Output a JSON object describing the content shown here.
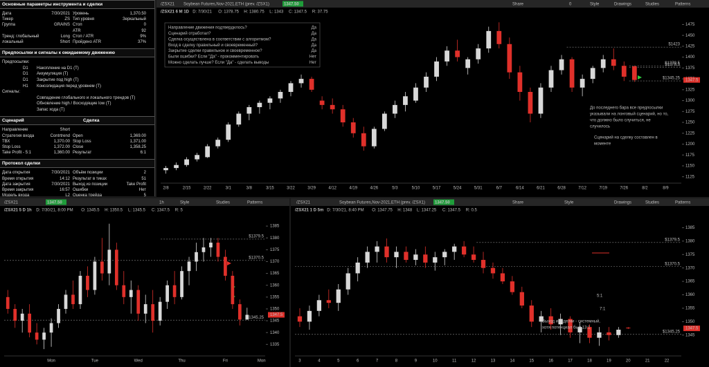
{
  "left_panel": {
    "sections": [
      {
        "titles": [
          "Основные параметры инструмента и сделки"
        ],
        "rows": [
          [
            "Дата",
            "7/30/2021",
            "Уровень",
            "1,370.50"
          ],
          [
            "Тикер",
            "ZS",
            "Тип уровня",
            "Зеркальный"
          ],
          [
            "Группа",
            "GRAINS",
            "Стоп",
            "0"
          ],
          [
            null,
            null,
            "ATR",
            "92"
          ],
          [
            "Тренд: глобальный",
            "Long",
            "Стоп / ATR",
            "9%"
          ],
          [
            "локальный",
            "Short",
            "Пройдено ATR",
            "37%"
          ]
        ]
      },
      {
        "titles": [
          "Предпосылки и сигналы к ожидаемому движению"
        ],
        "groups": [
          {
            "label": "Предпосылки:",
            "items": [
              [
                "D1",
                "Накопление на D1 (Т)"
              ],
              [
                "D1",
                "Аккумуляция (Т)"
              ],
              [
                "D1",
                "Закрытие под high (Т)"
              ],
              [
                "H1",
                "Консолидация перед уровнем (Т)"
              ]
            ]
          },
          {
            "label": "Сигналы:",
            "items": [
              [
                null,
                "Совпадение глобального и локального трендов (Т)"
              ],
              [
                null,
                "Обновление high / Восходящие low (Т)"
              ],
              [
                null,
                "Запас хода (Т)"
              ]
            ]
          }
        ]
      },
      {
        "titles": [
          "Сценарий",
          "Сделка"
        ],
        "rows": [
          [
            "Направление",
            "Short",
            null,
            null
          ],
          [
            "Стратегия входа",
            "Contrtrend",
            "Open",
            "1,369.00"
          ],
          [
            "ТВХ",
            "1,370.00",
            "Stop Loss",
            "1,371.00"
          ],
          [
            "Stop Loss",
            "1,372.00",
            "Close",
            "1,358.25"
          ],
          [
            "Take Profit - 5:1",
            "1,360.00",
            "Результат",
            "6:1"
          ]
        ]
      },
      {
        "titles": [
          "Протокол сделки"
        ],
        "rows": [
          [
            "Дата открытия",
            "7/30/2021",
            "Объём позиции",
            "2"
          ],
          [
            "Время открытия",
            "14:12",
            "Результат в тиках",
            "51"
          ],
          [
            "Дата закрытия",
            "7/30/2021",
            "Выход из позиции",
            "Take Profit"
          ],
          [
            "Время закрытия",
            "16:57",
            "Ошибки",
            "Нет"
          ],
          [
            "Модель входа",
            "L2",
            "Оценка трейда",
            "5"
          ]
        ]
      }
    ]
  },
  "chart_data": [
    {
      "type": "candlestick",
      "toolbar": [
        "/ZSX21",
        "Soybean Futures,Nov-2021,ETH (prev. /ZSX1)",
        "1347.50",
        "Share",
        "0",
        "Style",
        "Drawings",
        "Studies",
        "Patterns"
      ],
      "header": [
        "/ZSX21 6 M 1D",
        "D: 7/30/21",
        "O: 1378.75",
        "H: 1380.75",
        "L: 1343",
        "C: 1347.5",
        "R: 37.75"
      ],
      "up_color": "#d8d8d8",
      "down_color": "#e0302a",
      "ylim": [
        1115,
        1490
      ],
      "yticks": [
        1125,
        1150,
        1175,
        1200,
        1225,
        1250,
        1275,
        1300,
        1325,
        1350,
        1375,
        1400,
        1425,
        1450,
        1475
      ],
      "categories": [
        "2/8",
        null,
        "2/15",
        null,
        "2/22",
        null,
        "3/1",
        null,
        "3/8",
        null,
        "3/15",
        null,
        "3/22",
        null,
        "3/29",
        null,
        "4/12",
        null,
        "4/19",
        null,
        "4/26",
        null,
        "5/3",
        null,
        "5/10",
        null,
        "5/17",
        null,
        "5/24",
        null,
        "5/31",
        null,
        "6/7",
        null,
        "6/14",
        null,
        "6/21",
        null,
        "6/28",
        null,
        "7/12",
        null,
        "7/19",
        null,
        "7/26",
        null,
        "8/2",
        null,
        "8/9",
        null
      ],
      "candles": [
        [
          1140,
          1150,
          1132,
          1145
        ],
        [
          1145,
          1158,
          1140,
          1152
        ],
        [
          1152,
          1170,
          1148,
          1165
        ],
        [
          1165,
          1180,
          1160,
          1175
        ],
        [
          1170,
          1200,
          1168,
          1195
        ],
        [
          1195,
          1215,
          1190,
          1210
        ],
        [
          1210,
          1250,
          1205,
          1245
        ],
        [
          1245,
          1275,
          1240,
          1270
        ],
        [
          1270,
          1290,
          1255,
          1285
        ],
        [
          1285,
          1300,
          1270,
          1295
        ],
        [
          1295,
          1310,
          1280,
          1305
        ],
        [
          1305,
          1325,
          1295,
          1320
        ],
        [
          1320,
          1345,
          1310,
          1340
        ],
        [
          1340,
          1360,
          1330,
          1350
        ],
        [
          1350,
          1355,
          1320,
          1325
        ],
        [
          1300,
          1310,
          1280,
          1290
        ],
        [
          1290,
          1305,
          1270,
          1280
        ],
        [
          1280,
          1290,
          1240,
          1250
        ],
        [
          1250,
          1260,
          1215,
          1225
        ],
        [
          1225,
          1240,
          1185,
          1195
        ],
        [
          1195,
          1240,
          1190,
          1235
        ],
        [
          1235,
          1275,
          1230,
          1270
        ],
        [
          1270,
          1300,
          1260,
          1290
        ],
        [
          1290,
          1320,
          1275,
          1310
        ],
        [
          1300,
          1340,
          1295,
          1330
        ],
        [
          1330,
          1365,
          1320,
          1355
        ],
        [
          1355,
          1400,
          1345,
          1390
        ],
        [
          1390,
          1425,
          1380,
          1415
        ],
        [
          1415,
          1440,
          1390,
          1400
        ],
        [
          1375,
          1400,
          1360,
          1395
        ],
        [
          1395,
          1430,
          1385,
          1420
        ],
        [
          1420,
          1470,
          1410,
          1460
        ],
        [
          1460,
          1480,
          1420,
          1430
        ],
        [
          1430,
          1445,
          1350,
          1365
        ],
        [
          1365,
          1380,
          1300,
          1320
        ],
        [
          1320,
          1330,
          1250,
          1270
        ],
        [
          1270,
          1340,
          1260,
          1330
        ],
        [
          1330,
          1380,
          1320,
          1370
        ],
        [
          1370,
          1405,
          1360,
          1395
        ],
        [
          1395,
          1400,
          1320,
          1330
        ],
        [
          1330,
          1360,
          1310,
          1350
        ],
        [
          1350,
          1380,
          1340,
          1375
        ],
        [
          1375,
          1405,
          1365,
          1395
        ],
        [
          1395,
          1420,
          1370,
          1380
        ],
        [
          1380,
          1390,
          1345,
          1355
        ],
        [
          1378.75,
          1380.75,
          1343,
          1347.5
        ],
        null,
        null,
        null,
        null
      ],
      "levels": [
        {
          "value": 1423,
          "label": "$1423"
        },
        {
          "value": 1379.5,
          "label": "$1379.5"
        },
        {
          "value": 1376.5,
          "label": "$1376.5"
        },
        {
          "value": 1345.25,
          "label": "$1345.25"
        }
      ],
      "last": 1347.5,
      "checklist": [
        {
          "q": "Направление движения подтвердилось?",
          "a": "Да"
        },
        {
          "q": "Сценарий отработал?",
          "a": "Да"
        },
        {
          "q": "Сделка осуществлена в соответствии с алгоритмом?",
          "a": "Да"
        },
        {
          "q": "Вход в сделку правильный и своевременный?",
          "a": "Да"
        },
        {
          "q": "Закрытие сделки правильное и своевременное?",
          "a": "Да"
        },
        {
          "q": "Были ошибки? Если \"Да\" - прокомментировать",
          "a": "Нет"
        },
        {
          "q": "Можно сделать лучше? Если \"Да\" - сделать выводы",
          "a": "Нет"
        }
      ],
      "annotations": [
        "До последнего бара все предпосылки",
        "указывали на лонговый сценарий, но то,",
        "что должно было случиться, не",
        "случилось",
        "Сценарий на сделку составлен в",
        "моменте"
      ]
    },
    {
      "type": "candlestick",
      "toolbar": [
        "/ZSX21",
        "1347.50",
        "1h",
        "Style",
        "Studies",
        "Patterns"
      ],
      "header": [
        "/ZSX21 5 D 1h",
        "D: 7/30/21, 8:00 PM",
        "O: 1345.5",
        "H: 1350.5",
        "L: 1345.5",
        "C: 1347.5",
        "R: 5"
      ],
      "up_color": "#d8d8d8",
      "down_color": "#e0302a",
      "ylim": [
        1331,
        1390
      ],
      "yticks": [
        1335,
        1340,
        1345,
        1350,
        1355,
        1360,
        1365,
        1370,
        1375,
        1380,
        1385
      ],
      "categories": [
        null,
        null,
        null,
        null,
        null,
        null,
        "Mon",
        null,
        null,
        null,
        null,
        null,
        "Tue",
        null,
        null,
        null,
        null,
        null,
        "Wed",
        null,
        null,
        null,
        null,
        null,
        "Thu",
        null,
        null,
        null,
        null,
        null,
        "Fri",
        null,
        null,
        null,
        null,
        "Mon"
      ],
      "candles": [
        [
          1355,
          1358,
          1348,
          1350
        ],
        [
          1350,
          1352,
          1342,
          1345
        ],
        [
          1345,
          1350,
          1340,
          1348
        ],
        [
          1348,
          1352,
          1338,
          1340
        ],
        [
          1340,
          1344,
          1335,
          1337
        ],
        [
          1337,
          1342,
          1333,
          1340
        ],
        [
          1340,
          1346,
          1334,
          1344
        ],
        [
          1344,
          1352,
          1342,
          1350
        ],
        [
          1350,
          1358,
          1348,
          1356
        ],
        [
          1356,
          1362,
          1350,
          1352
        ],
        [
          1352,
          1366,
          1350,
          1364
        ],
        [
          1364,
          1368,
          1355,
          1358
        ],
        [
          1358,
          1372,
          1356,
          1370
        ],
        [
          1370,
          1380,
          1362,
          1365
        ],
        [
          1365,
          1386,
          1360,
          1375
        ],
        [
          1375,
          1378,
          1358,
          1360
        ],
        [
          1360,
          1366,
          1352,
          1355
        ],
        [
          1355,
          1362,
          1348,
          1358
        ],
        [
          1358,
          1360,
          1345,
          1348
        ],
        [
          1348,
          1356,
          1344,
          1352
        ],
        [
          1352,
          1358,
          1340,
          1345
        ],
        [
          1345,
          1355,
          1343,
          1353
        ],
        [
          1353,
          1362,
          1350,
          1360
        ],
        [
          1360,
          1366,
          1352,
          1355
        ],
        [
          1355,
          1368,
          1354,
          1366
        ],
        [
          1366,
          1372,
          1360,
          1370
        ],
        [
          1370,
          1378,
          1366,
          1374
        ],
        [
          1374,
          1380,
          1370,
          1376
        ],
        [
          1376,
          1380,
          1372,
          1378
        ],
        [
          1378,
          1380,
          1370,
          1372
        ],
        [
          1372,
          1375,
          1362,
          1364
        ],
        [
          1364,
          1366,
          1350,
          1352
        ],
        [
          1352,
          1354,
          1343,
          1345.5
        ],
        [
          1345.5,
          1350.5,
          1345.5,
          1347.5
        ],
        null,
        null
      ],
      "levels": [
        {
          "value": 1379.5,
          "label": "$1379.5"
        },
        {
          "value": 1370.5,
          "label": "$1370.5"
        },
        {
          "value": 1345.25,
          "label": "$1345.25"
        }
      ],
      "last": 1347.5
    },
    {
      "type": "candlestick",
      "toolbar": [
        "/ZSX21",
        "Soybean Futures,Nov-2021,ETH (prev. /ZSX1)",
        "1347.50",
        "Share",
        "Style",
        "Drawings",
        "Studies",
        "Patterns"
      ],
      "header": [
        "/ZSX21 1 D 5m",
        "D: 7/30/21, 8:40 PM",
        "O: 1347.75",
        "H: 1348",
        "L: 1347.25",
        "C: 1347.5",
        "R: 0.5"
      ],
      "up_color": "#d8d8d8",
      "down_color": "#e0302a",
      "ylim": [
        1338,
        1390
      ],
      "yticks": [
        1345,
        1350,
        1355,
        1360,
        1365,
        1370,
        1375,
        1380,
        1385
      ],
      "categories": [
        "3",
        null,
        "4",
        null,
        "5",
        null,
        "6",
        null,
        "7",
        null,
        "8",
        null,
        "9",
        null,
        "10",
        null,
        "11",
        null,
        "12",
        null,
        "13",
        null,
        "14",
        null,
        "15",
        null,
        "16",
        null,
        "17",
        null,
        "18",
        null,
        "19",
        null,
        "20",
        null,
        "21",
        null,
        "22",
        null
      ],
      "candles": [
        [
          1352,
          1355,
          1348,
          1350
        ],
        [
          1350,
          1356,
          1347,
          1354
        ],
        [
          1354,
          1360,
          1352,
          1358
        ],
        [
          1358,
          1362,
          1355,
          1357
        ],
        [
          1357,
          1364,
          1354,
          1362
        ],
        [
          1362,
          1370,
          1360,
          1368
        ],
        [
          1368,
          1374,
          1365,
          1372
        ],
        [
          1372,
          1378,
          1370,
          1376
        ],
        [
          1376,
          1380,
          1372,
          1378
        ],
        [
          1378,
          1381,
          1372,
          1374
        ],
        [
          1374,
          1378,
          1370,
          1376
        ],
        [
          1376,
          1378,
          1372,
          1373
        ],
        [
          1373,
          1377,
          1371,
          1375
        ],
        [
          1375,
          1378,
          1370,
          1372
        ],
        [
          1372,
          1376,
          1369,
          1374
        ],
        [
          1374,
          1377,
          1371,
          1376
        ],
        [
          1376,
          1379,
          1373,
          1378
        ],
        [
          1378,
          1380,
          1374,
          1375
        ],
        [
          1375,
          1378,
          1372,
          1373
        ],
        [
          1373,
          1376,
          1368,
          1370
        ],
        [
          1370,
          1372,
          1366,
          1368
        ],
        [
          1368,
          1370,
          1364,
          1365
        ],
        [
          1365,
          1367,
          1360,
          1361
        ],
        [
          1361,
          1363,
          1355,
          1356
        ],
        [
          1356,
          1358,
          1348,
          1350
        ],
        [
          1350,
          1354,
          1346,
          1352
        ],
        [
          1352,
          1355,
          1347,
          1349
        ],
        [
          1349,
          1353,
          1345,
          1351
        ],
        [
          1351,
          1352,
          1344,
          1346
        ],
        [
          1346,
          1350,
          1342,
          1348
        ],
        [
          1348,
          1349,
          1342,
          1344
        ],
        [
          1344,
          1348,
          1341,
          1346
        ],
        [
          1346,
          1348,
          1343,
          1345
        ],
        [
          1345,
          1348,
          1344,
          1347
        ],
        [
          1347.75,
          1348,
          1347.25,
          1347.5
        ],
        null,
        null,
        null,
        null,
        null
      ],
      "levels": [
        {
          "value": 1379.5,
          "label": "$1379.5"
        },
        {
          "value": 1370.5,
          "label": "$1370.5"
        },
        {
          "value": 1345.25,
          "label": "$1345.25"
        }
      ],
      "last": 1347.5,
      "annotations": [
        "Выход из сделки - системный,",
        "хотя потенциал был 13:1",
        "5:1",
        "7:1"
      ]
    }
  ]
}
